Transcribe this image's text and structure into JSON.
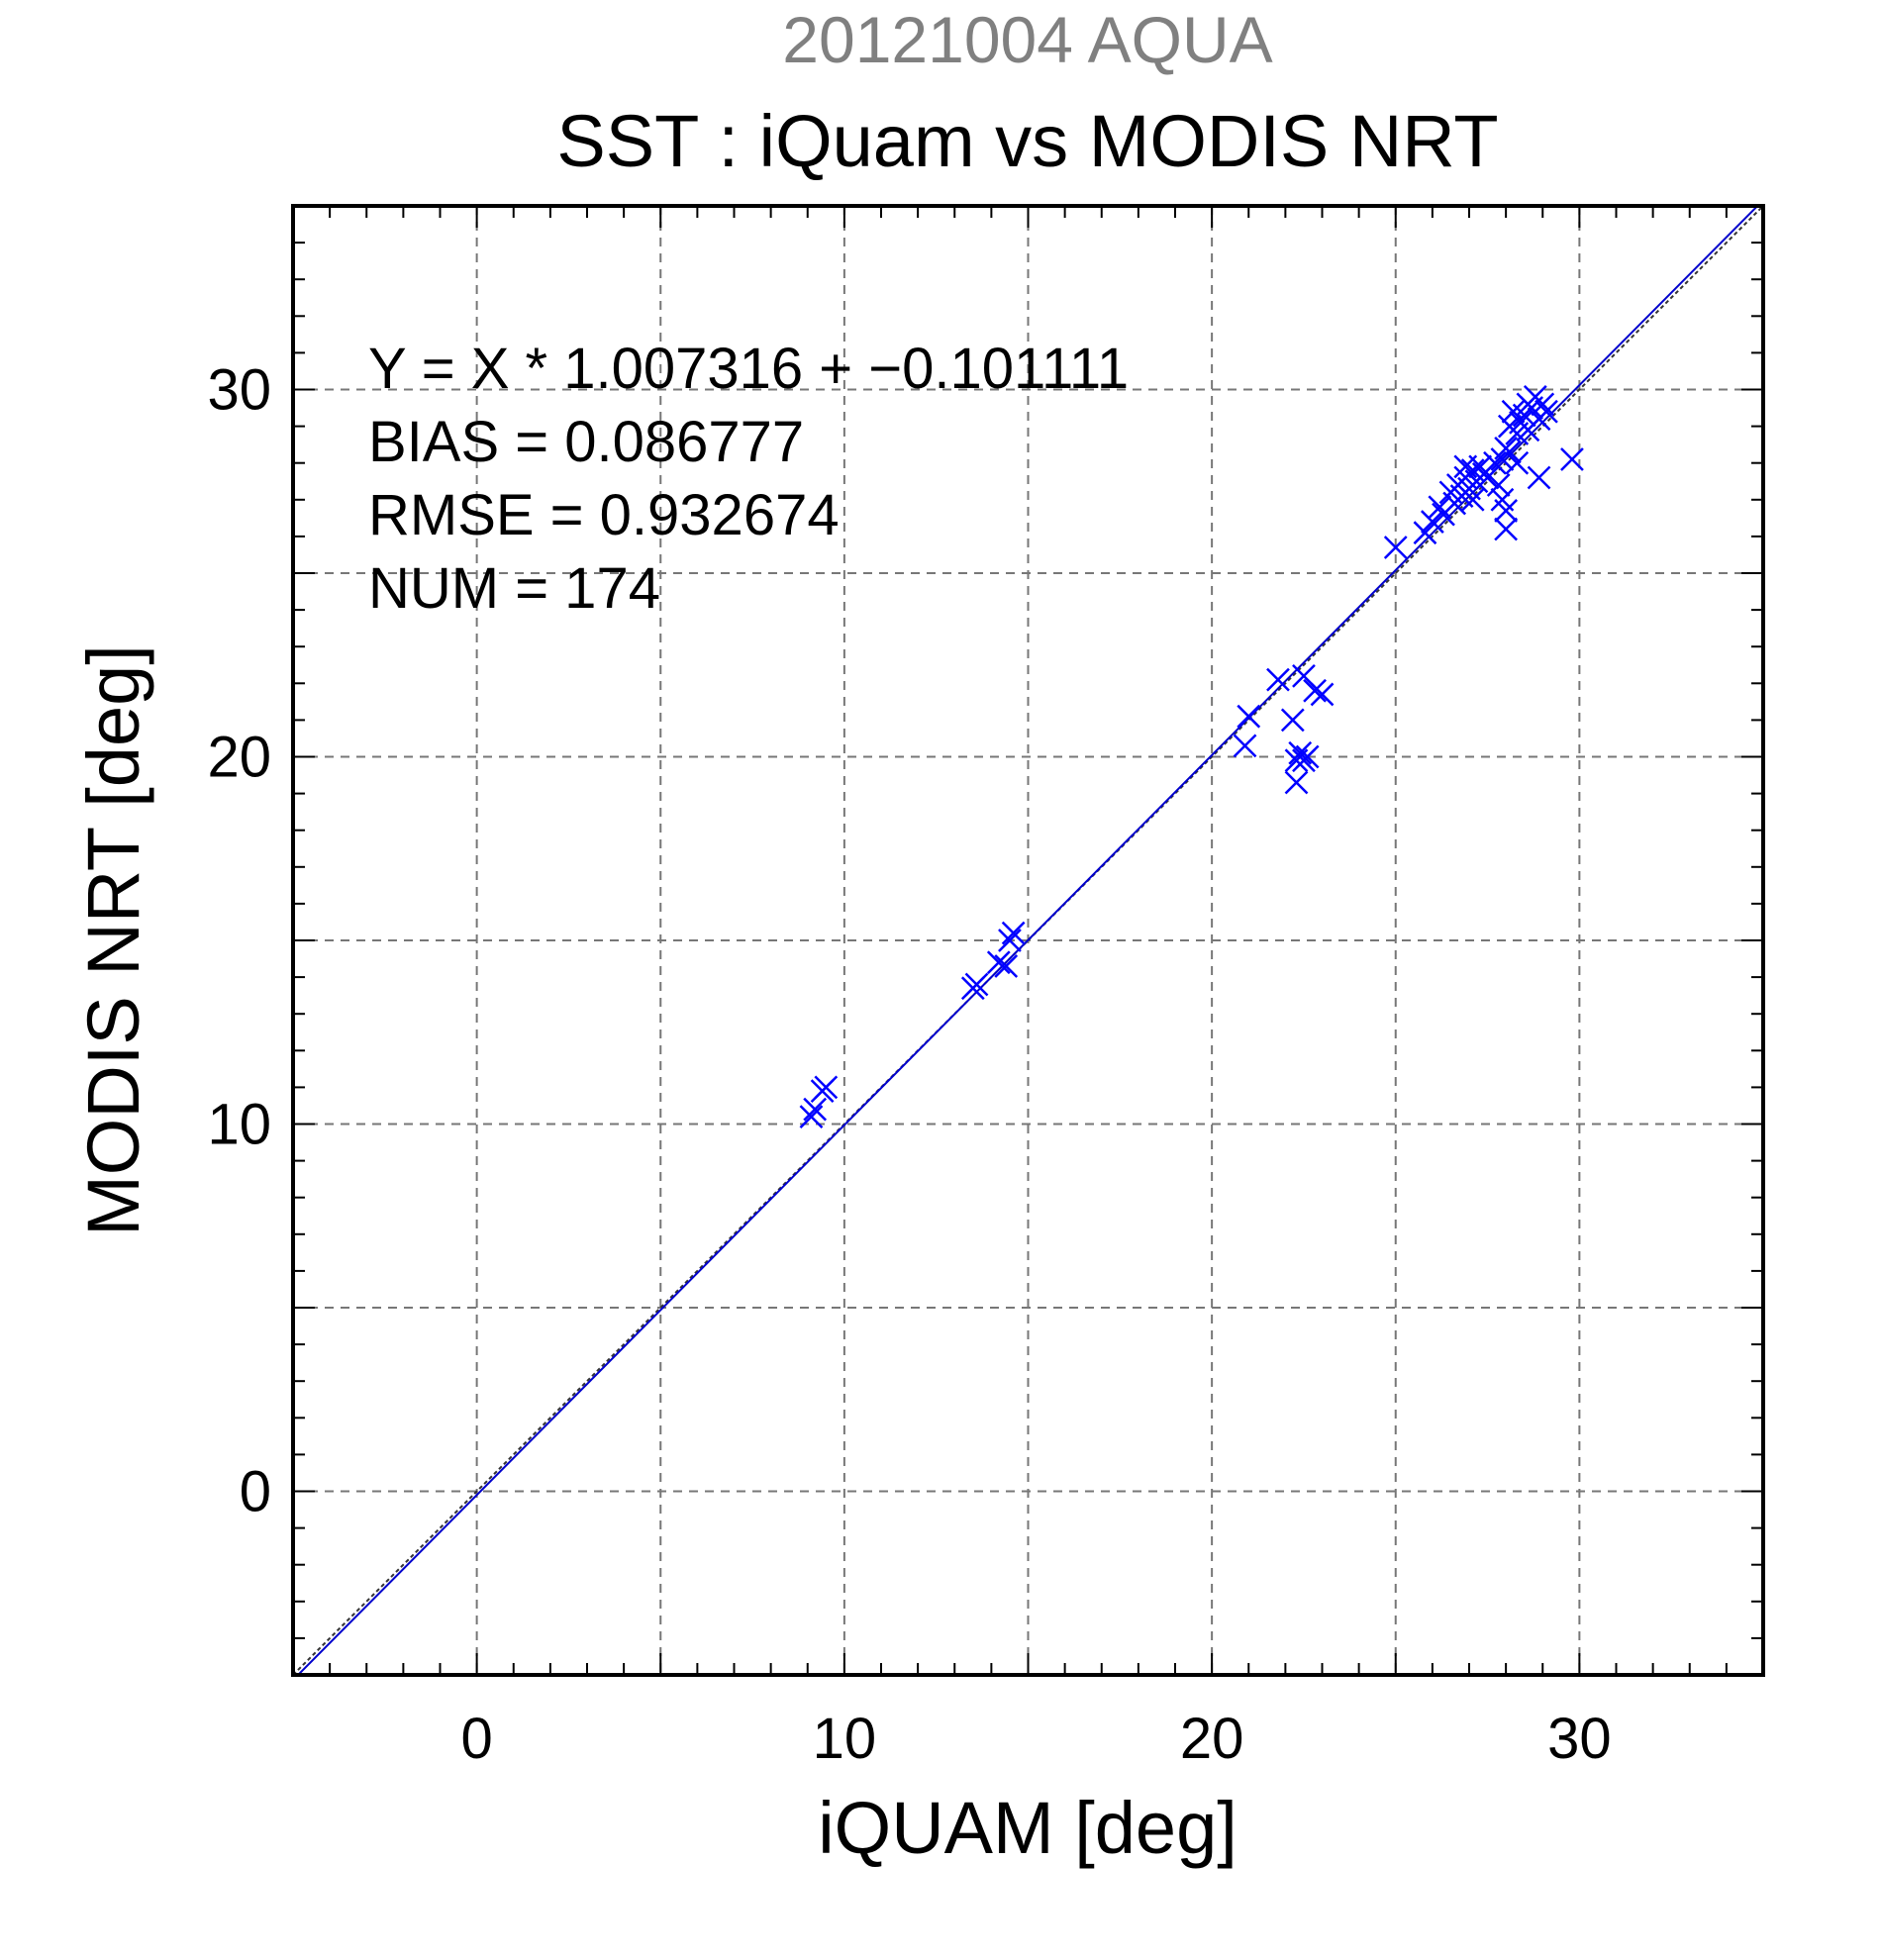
{
  "chart_data": {
    "type": "scatter",
    "supertitle": "20121004 AQUA",
    "title": "SST : iQuam vs MODIS NRT",
    "xlabel": "iQUAM [deg]",
    "ylabel": "MODIS NRT [deg]",
    "xlim": [
      -5,
      35
    ],
    "ylim": [
      -5,
      35
    ],
    "xticks": [
      0,
      10,
      20,
      30
    ],
    "yticks": [
      0,
      10,
      20,
      30
    ],
    "minor_step": 1,
    "grid_step": 5,
    "grid": true,
    "annotations": [
      "Y = X * 1.007316 + −0.101111",
      "BIAS = 0.086777",
      "RMSE = 0.932674",
      "NUM = 174"
    ],
    "fit": {
      "slope": 1.007316,
      "intercept": -0.101111
    },
    "marker_color": "#0000ff",
    "line_color": "#0000cc",
    "series": [
      {
        "marker": "x",
        "points": [
          [
            9.1,
            10.2
          ],
          [
            9.2,
            10.4
          ],
          [
            9.4,
            10.9
          ],
          [
            9.5,
            11.0
          ],
          [
            13.5,
            13.7
          ],
          [
            13.6,
            13.8
          ],
          [
            14.2,
            14.4
          ],
          [
            14.4,
            14.3
          ],
          [
            14.5,
            15.0
          ],
          [
            14.6,
            15.2
          ],
          [
            20.9,
            20.3
          ],
          [
            21.0,
            21.1
          ],
          [
            21.8,
            22.1
          ],
          [
            22.2,
            21.0
          ],
          [
            22.3,
            19.9
          ],
          [
            22.3,
            19.3
          ],
          [
            22.4,
            20.1
          ],
          [
            22.5,
            22.2
          ],
          [
            22.5,
            19.9
          ],
          [
            22.6,
            20.0
          ],
          [
            22.8,
            21.8
          ],
          [
            23.0,
            21.7
          ],
          [
            25.0,
            25.7
          ],
          [
            25.8,
            26.1
          ],
          [
            26.0,
            26.4
          ],
          [
            26.2,
            26.8
          ],
          [
            26.3,
            26.6
          ],
          [
            26.5,
            27.2
          ],
          [
            26.6,
            26.9
          ],
          [
            26.7,
            27.4
          ],
          [
            26.8,
            27.1
          ],
          [
            26.9,
            27.6
          ],
          [
            26.9,
            27.9
          ],
          [
            27.0,
            27.3
          ],
          [
            27.1,
            27.8
          ],
          [
            27.1,
            27.0
          ],
          [
            27.2,
            27.5
          ],
          [
            27.3,
            27.9
          ],
          [
            27.4,
            27.7
          ],
          [
            27.5,
            27.6
          ],
          [
            27.7,
            28.0
          ],
          [
            27.8,
            27.4
          ],
          [
            27.9,
            28.1
          ],
          [
            27.9,
            27.0
          ],
          [
            28.0,
            26.7
          ],
          [
            28.0,
            26.2
          ],
          [
            28.0,
            28.4
          ],
          [
            28.1,
            28.3
          ],
          [
            28.1,
            29.0
          ],
          [
            28.2,
            29.4
          ],
          [
            28.3,
            28.8
          ],
          [
            28.3,
            28.0
          ],
          [
            28.4,
            29.1
          ],
          [
            28.5,
            29.3
          ],
          [
            28.6,
            29.6
          ],
          [
            28.6,
            28.9
          ],
          [
            28.7,
            29.5
          ],
          [
            28.8,
            29.8
          ],
          [
            28.9,
            29.2
          ],
          [
            29.0,
            29.6
          ],
          [
            29.1,
            29.4
          ],
          [
            28.9,
            27.6
          ],
          [
            29.8,
            28.1
          ]
        ]
      }
    ]
  }
}
